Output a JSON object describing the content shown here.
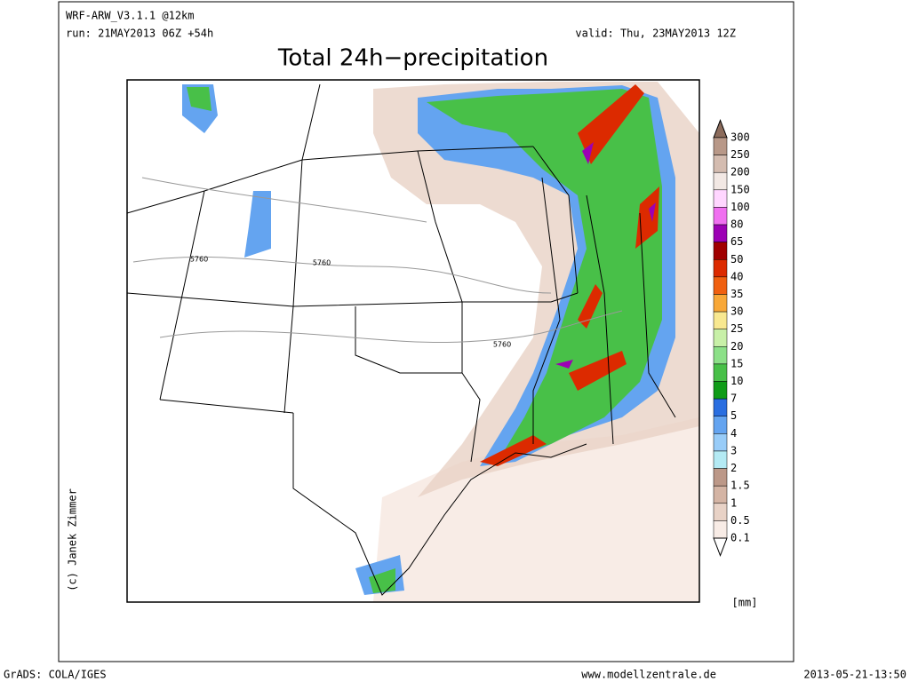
{
  "header": {
    "model": "WRF-ARW_V3.1.1 @12km",
    "run": "run: 21MAY2013 06Z +54h",
    "valid": "valid: Thu, 23MAY2013 12Z",
    "title": "Total 24h−precipitation"
  },
  "map": {
    "contour_labels": [
      "5760",
      "5760",
      "5760"
    ],
    "credit": "(c) Janek Zimmer"
  },
  "legend": {
    "labels": [
      "300",
      "250",
      "200",
      "150",
      "100",
      "80",
      "65",
      "50",
      "40",
      "35",
      "30",
      "25",
      "20",
      "15",
      "10",
      "7",
      "5",
      "4",
      "3",
      "2",
      "1.5",
      "1",
      "0.5",
      "0.1"
    ],
    "colors": [
      "#8c6c5c",
      "#b89888",
      "#d4bcb0",
      "#f2e8e4",
      "#ffd6ff",
      "#f070f0",
      "#9c00b4",
      "#a00000",
      "#dc2a00",
      "#f06010",
      "#f8a838",
      "#f8e890",
      "#c8f0a8",
      "#8ce088",
      "#48c048",
      "#109c18",
      "#2a6ee0",
      "#64a4f0",
      "#98ccf8",
      "#b4eaf4",
      "#bc9888",
      "#d4b4a4",
      "#e8d2c6",
      "#f8ece6",
      "#ffffff"
    ],
    "unit": "[mm]"
  },
  "footer": {
    "left": "GrADS: COLA/IGES",
    "center": "www.modellzentrale.de",
    "right": "2013-05-21-13:50"
  }
}
